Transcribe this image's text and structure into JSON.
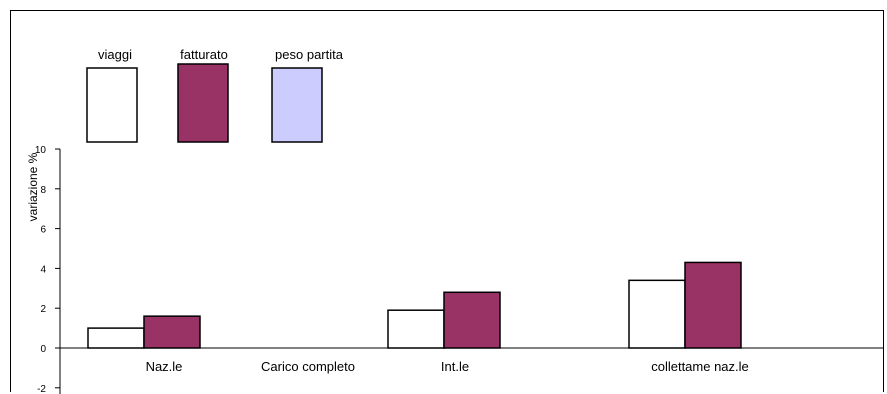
{
  "chart_data": {
    "type": "bar",
    "categories": [
      "Naz.le",
      "Carico completo",
      "Int.le",
      "collettame naz.le"
    ],
    "series": [
      {
        "name": "viaggi",
        "values": [
          1.0,
          null,
          1.9,
          3.4
        ],
        "color": "#FFFFFF"
      },
      {
        "name": "fatturato",
        "values": [
          1.6,
          null,
          2.8,
          4.3
        ],
        "color": "#993366"
      },
      {
        "name": "peso partita",
        "values": [
          null,
          null,
          null,
          null
        ],
        "color": "#CCCCFF"
      }
    ],
    "xlabel": "",
    "ylabel": "variazione %",
    "ylim": [
      -2,
      10
    ],
    "yticks": [
      "-2",
      "0",
      "2",
      "4",
      "6",
      "8",
      "10"
    ],
    "grid": false,
    "legend": "top-left"
  }
}
